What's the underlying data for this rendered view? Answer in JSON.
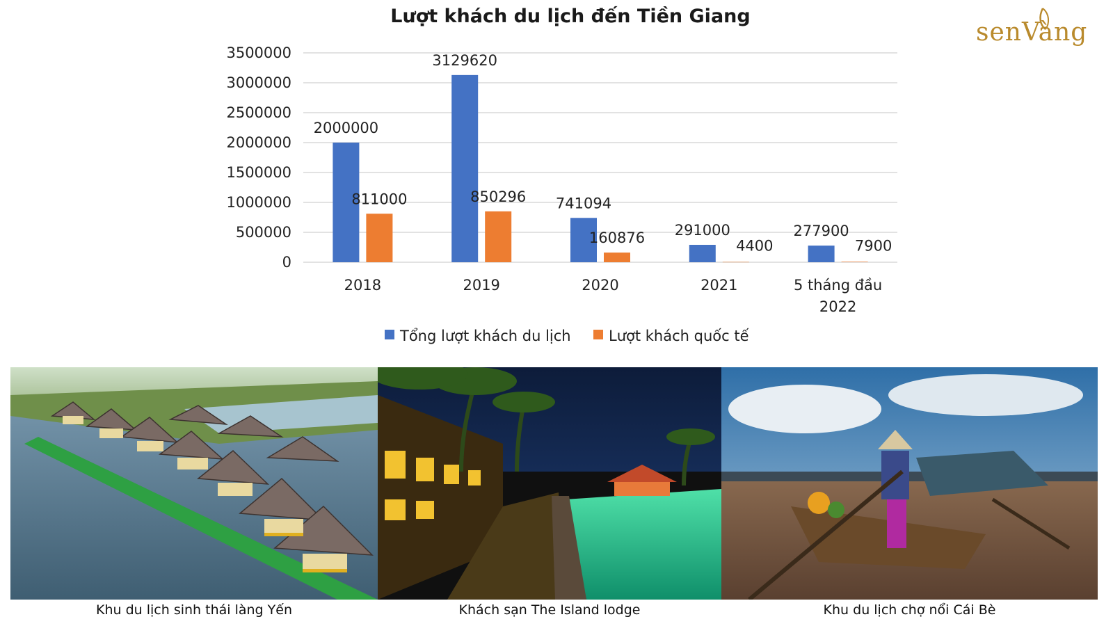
{
  "brand": {
    "logo_text": "senVàng"
  },
  "chart_data": {
    "type": "bar",
    "title": "Lượt khách du lịch đến Tiền Giang",
    "categories": [
      "2018",
      "2019",
      "2020",
      "2021",
      "5 tháng đầu 2022"
    ],
    "category_lines": [
      [
        "2018"
      ],
      [
        "2019"
      ],
      [
        "2020"
      ],
      [
        "2021"
      ],
      [
        "5 tháng đầu",
        "2022"
      ]
    ],
    "series": [
      {
        "name": "Tổng lượt khách du lịch",
        "color": "#4472C4",
        "values": [
          2000000,
          3129620,
          741094,
          291000,
          277900
        ]
      },
      {
        "name": "Lượt khách quốc tế",
        "color": "#ED7D31",
        "values": [
          811000,
          850296,
          160876,
          4400,
          7900
        ]
      }
    ],
    "ylim": [
      0,
      3500000
    ],
    "yticks": [
      0,
      500000,
      1000000,
      1500000,
      2000000,
      2500000,
      3000000,
      3500000
    ],
    "grid": true,
    "legend": "bottom",
    "xlabel": "",
    "ylabel": ""
  },
  "photos": [
    {
      "caption": "Khu du lịch sinh thái làng Yến"
    },
    {
      "caption": "Khách sạn The Island lodge"
    },
    {
      "caption": "Khu du lịch chợ nổi Cái Bè"
    }
  ]
}
